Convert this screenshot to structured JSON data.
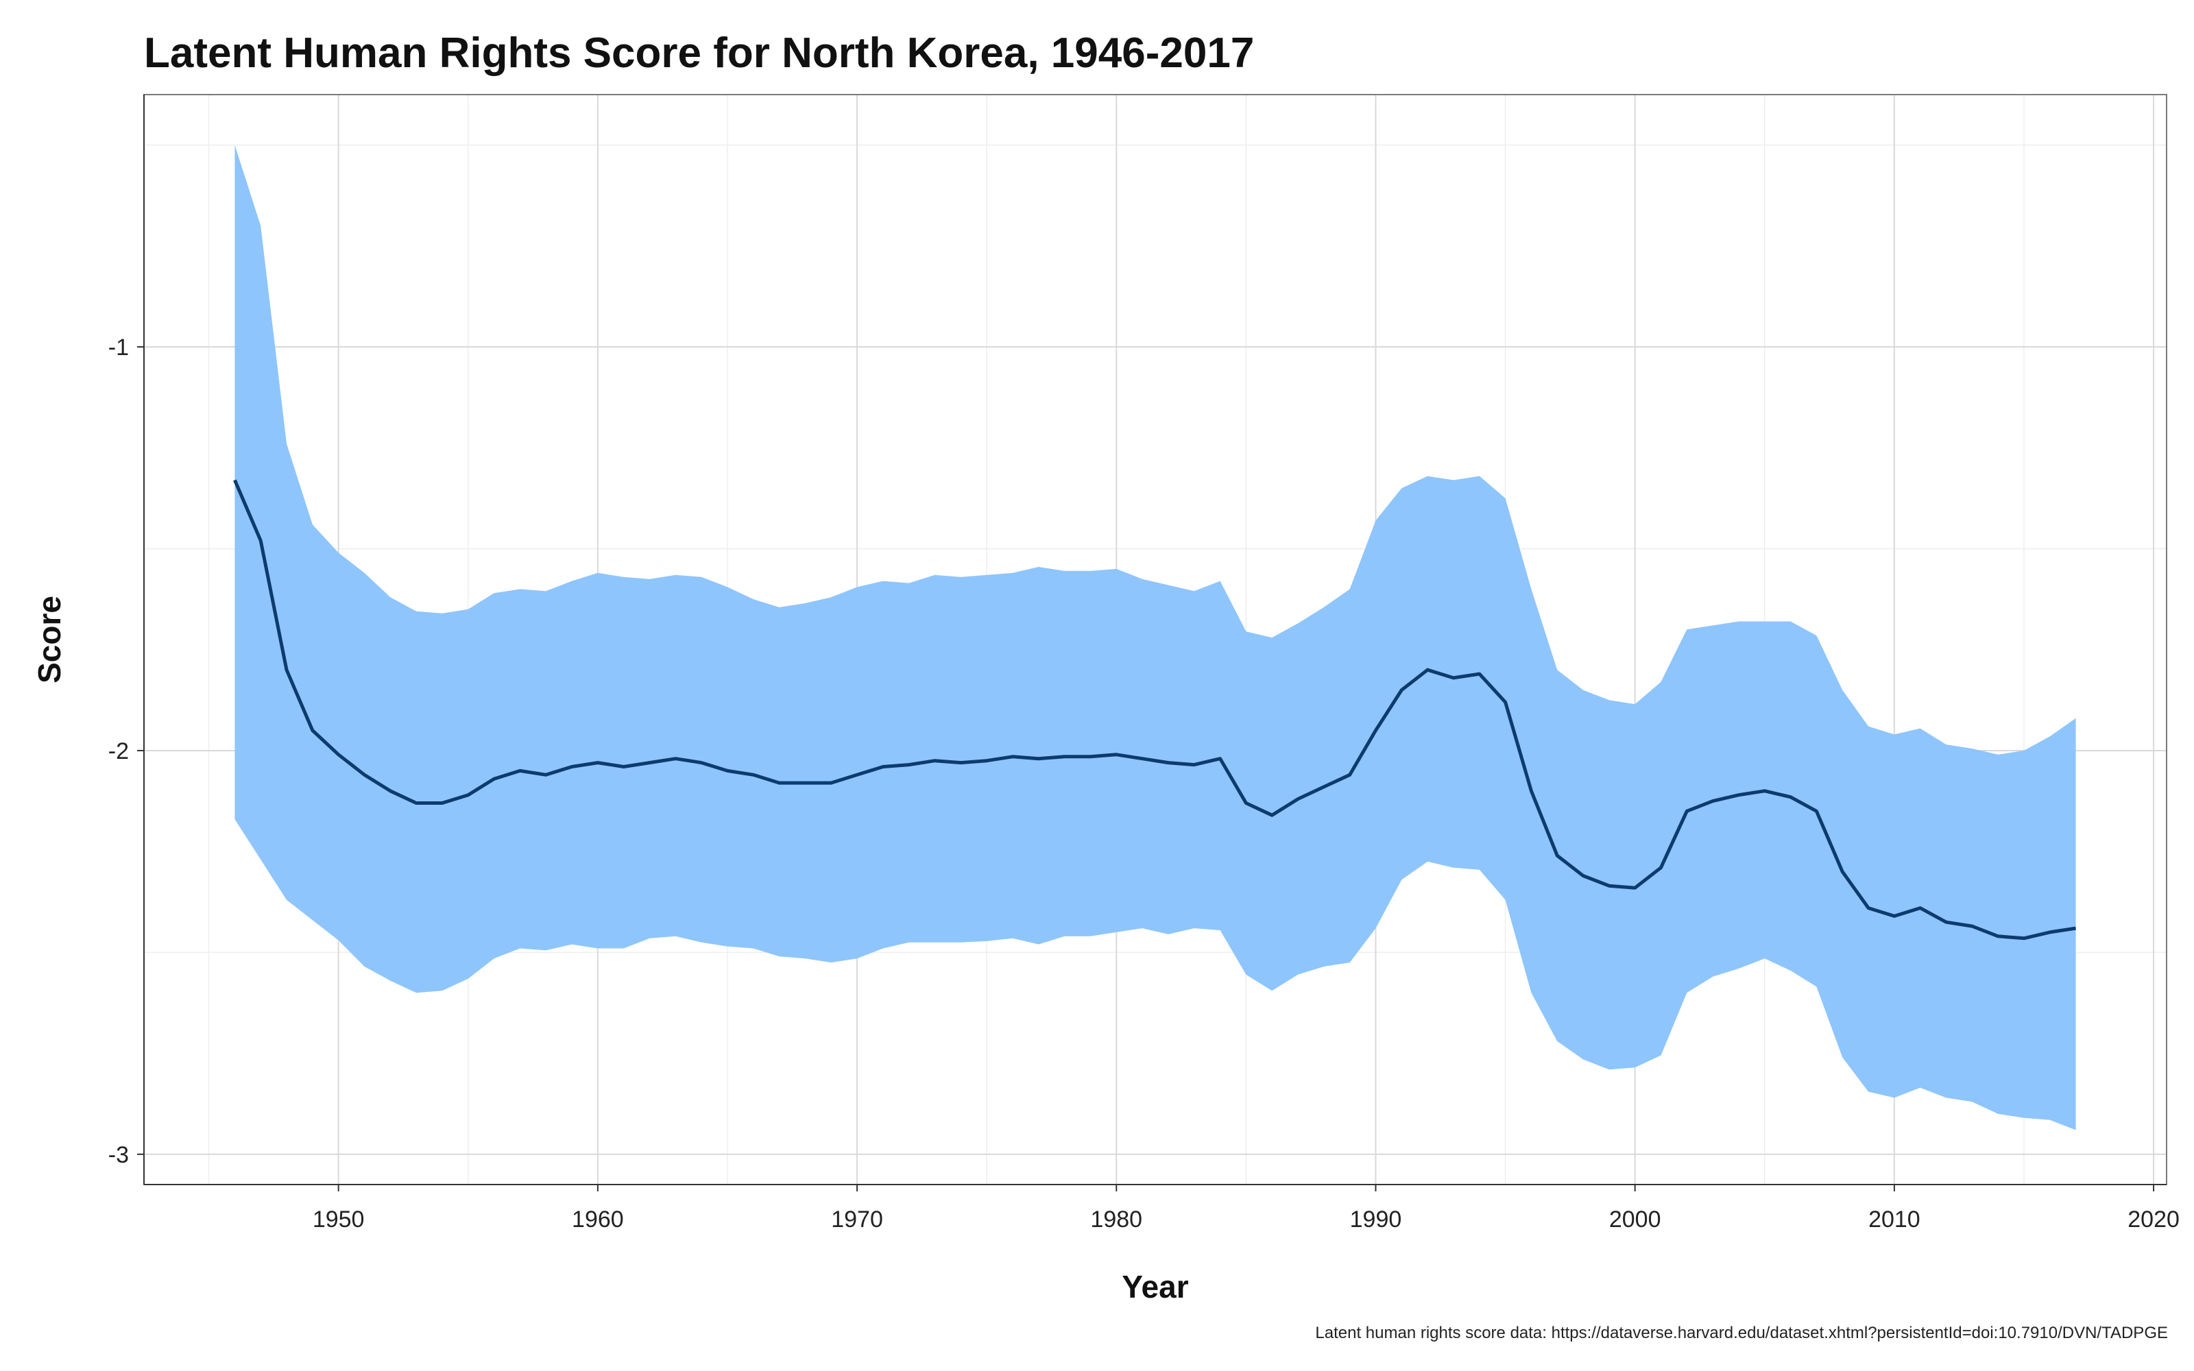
{
  "chart_data": {
    "type": "area",
    "title": "Latent Human Rights Score for North Korea, 1946-2017",
    "xlabel": "Year",
    "ylabel": "Score",
    "caption": "Latent human rights score data: https://dataverse.harvard.edu/dataset.xhtml?persistentId=doi:10.7910/DVN/TADPGE",
    "xlim": [
      1942.5,
      2020.5
    ],
    "ylim": [
      -3.075,
      -0.375
    ],
    "x_ticks": [
      1950,
      1960,
      1970,
      1980,
      1990,
      2000,
      2010,
      2020
    ],
    "y_ticks": [
      -3,
      -2,
      -1
    ],
    "y_tick_labels": [
      "-3",
      "-2",
      "-1"
    ],
    "grid": true,
    "colors": {
      "band": "#8ec5fc",
      "line": "#0d3b6e"
    },
    "x": [
      1946,
      1947,
      1948,
      1949,
      1950,
      1951,
      1952,
      1953,
      1954,
      1955,
      1956,
      1957,
      1958,
      1959,
      1960,
      1961,
      1962,
      1963,
      1964,
      1965,
      1966,
      1967,
      1968,
      1969,
      1970,
      1971,
      1972,
      1973,
      1974,
      1975,
      1976,
      1977,
      1978,
      1979,
      1980,
      1981,
      1982,
      1983,
      1984,
      1985,
      1986,
      1987,
      1988,
      1989,
      1990,
      1991,
      1992,
      1993,
      1994,
      1995,
      1996,
      1997,
      1998,
      1999,
      2000,
      2001,
      2002,
      2003,
      2004,
      2005,
      2006,
      2007,
      2008,
      2009,
      2010,
      2011,
      2012,
      2013,
      2014,
      2015,
      2016,
      2017
    ],
    "series": [
      {
        "role": "mean",
        "values": [
          -1.33,
          -1.48,
          -1.8,
          -1.95,
          -2.01,
          -2.06,
          -2.1,
          -2.13,
          -2.13,
          -2.11,
          -2.07,
          -2.05,
          -2.06,
          -2.04,
          -2.03,
          -2.04,
          -2.03,
          -2.02,
          -2.03,
          -2.05,
          -2.06,
          -2.08,
          -2.08,
          -2.08,
          -2.06,
          -2.04,
          -2.035,
          -2.025,
          -2.03,
          -2.025,
          -2.015,
          -2.02,
          -2.015,
          -2.015,
          -2.01,
          -2.02,
          -2.03,
          -2.035,
          -2.02,
          -2.13,
          -2.16,
          -2.12,
          -2.09,
          -2.06,
          -1.95,
          -1.85,
          -1.8,
          -1.82,
          -1.81,
          -1.88,
          -2.1,
          -2.26,
          -2.31,
          -2.335,
          -2.34,
          -2.29,
          -2.15,
          -2.125,
          -2.11,
          -2.1,
          -2.115,
          -2.15,
          -2.3,
          -2.39,
          -2.41,
          -2.39,
          -2.425,
          -2.435,
          -2.46,
          -2.465,
          -2.45,
          -2.44
        ]
      },
      {
        "role": "upper",
        "values": [
          -0.5,
          -0.7,
          -1.24,
          -1.44,
          -1.51,
          -1.56,
          -1.62,
          -1.655,
          -1.66,
          -1.65,
          -1.61,
          -1.6,
          -1.605,
          -1.58,
          -1.56,
          -1.57,
          -1.575,
          -1.565,
          -1.57,
          -1.595,
          -1.625,
          -1.645,
          -1.635,
          -1.62,
          -1.595,
          -1.58,
          -1.585,
          -1.565,
          -1.57,
          -1.565,
          -1.56,
          -1.545,
          -1.555,
          -1.555,
          -1.55,
          -1.575,
          -1.59,
          -1.605,
          -1.58,
          -1.705,
          -1.72,
          -1.685,
          -1.645,
          -1.6,
          -1.43,
          -1.35,
          -1.32,
          -1.33,
          -1.32,
          -1.375,
          -1.6,
          -1.8,
          -1.85,
          -1.875,
          -1.885,
          -1.83,
          -1.7,
          -1.69,
          -1.68,
          -1.68,
          -1.68,
          -1.715,
          -1.85,
          -1.94,
          -1.96,
          -1.945,
          -1.985,
          -1.995,
          -2.01,
          -2.0,
          -1.965,
          -1.92
        ]
      },
      {
        "role": "lower",
        "values": [
          -2.17,
          -2.27,
          -2.37,
          -2.42,
          -2.47,
          -2.535,
          -2.57,
          -2.6,
          -2.595,
          -2.565,
          -2.515,
          -2.49,
          -2.495,
          -2.48,
          -2.49,
          -2.49,
          -2.465,
          -2.46,
          -2.475,
          -2.485,
          -2.49,
          -2.51,
          -2.515,
          -2.525,
          -2.515,
          -2.49,
          -2.475,
          -2.475,
          -2.475,
          -2.472,
          -2.465,
          -2.48,
          -2.46,
          -2.46,
          -2.45,
          -2.44,
          -2.455,
          -2.44,
          -2.445,
          -2.555,
          -2.595,
          -2.555,
          -2.535,
          -2.525,
          -2.44,
          -2.32,
          -2.275,
          -2.29,
          -2.295,
          -2.37,
          -2.6,
          -2.72,
          -2.765,
          -2.79,
          -2.785,
          -2.755,
          -2.6,
          -2.56,
          -2.54,
          -2.515,
          -2.545,
          -2.585,
          -2.76,
          -2.845,
          -2.86,
          -2.835,
          -2.86,
          -2.87,
          -2.9,
          -2.91,
          -2.915,
          -2.94
        ]
      }
    ]
  }
}
